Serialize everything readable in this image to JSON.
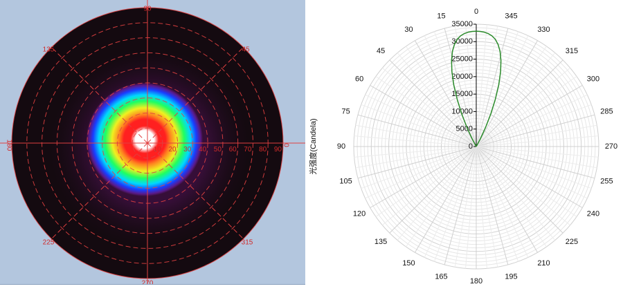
{
  "chart_data": [
    {
      "type": "heatmap",
      "title": "",
      "angle_labels": [
        "90",
        "45",
        "0",
        "315",
        "270",
        "225",
        "180",
        "135"
      ],
      "radius_labels": [
        "10",
        "20",
        "30",
        "40",
        "50",
        "60",
        "70",
        "80",
        "90"
      ],
      "colors": {
        "outer_dark": "#140a10",
        "halo": "#3a0f3c",
        "violet": "#5a1a8a",
        "blue": "#1a3cff",
        "cyan": "#00d8ff",
        "green": "#20ff60",
        "yellow": "#f0f020",
        "orange": "#ff8020",
        "red": "#ff2020",
        "center": "#ffffff",
        "grid": "#e04040",
        "background": "#b3c6de"
      }
    },
    {
      "type": "line",
      "polar": true,
      "ylabel": "光强度(Candela)",
      "angle_ticks": [
        0,
        345,
        330,
        315,
        300,
        285,
        270,
        255,
        240,
        225,
        210,
        195,
        180,
        165,
        150,
        135,
        120,
        105,
        90,
        75,
        60,
        45,
        30,
        15
      ],
      "radial_ticks": [
        0,
        5000,
        10000,
        15000,
        20000,
        25000,
        30000,
        35000
      ],
      "rlim": [
        0,
        35000
      ],
      "series_color": "#2a8a2a",
      "series": [
        {
          "theta": [
            -30,
            -28,
            -26,
            -24,
            -22,
            -20,
            -18,
            -16,
            -14,
            -12,
            -10,
            -8,
            -6,
            -4,
            -2,
            0,
            2,
            4,
            6,
            8,
            10,
            12,
            14,
            16,
            18,
            20,
            22,
            24,
            26,
            28,
            30
          ],
          "r": [
            0,
            2500,
            6000,
            10200,
            14500,
            18800,
            22500,
            25600,
            28100,
            29900,
            31200,
            32000,
            32500,
            32800,
            32950,
            33000,
            32950,
            32800,
            32500,
            32000,
            31200,
            29900,
            28100,
            25600,
            22500,
            18800,
            14500,
            10200,
            6000,
            2500,
            0
          ]
        }
      ]
    }
  ]
}
